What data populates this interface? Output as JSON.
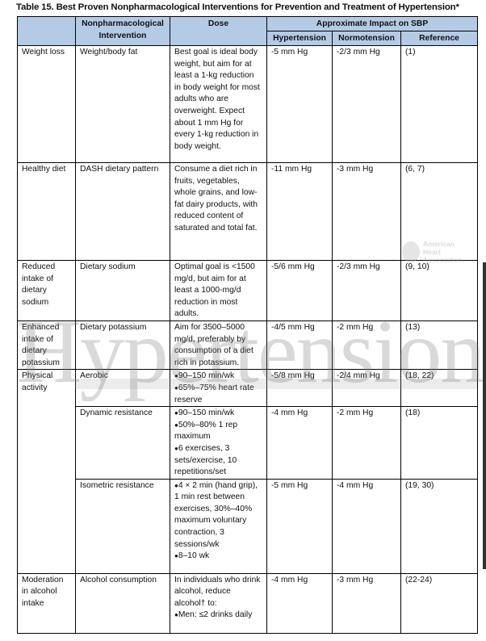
{
  "title": "Table 15. Best Proven Nonpharmacological Interventions for Prevention and Treatment of Hypertension*",
  "headers": {
    "intervention": "Nonpharmacological Intervention",
    "dose": "Dose",
    "impact": "Approximate Impact on SBP",
    "hypertension": "Hypertension",
    "normotension": "Normotension",
    "reference": "Reference"
  },
  "groups": [
    {
      "category": "Weight loss",
      "rows": [
        {
          "intervention": "Weight/body fat",
          "dose": "Best goal is ideal body weight, but aim for at least a 1-kg reduction in body weight for most adults who are overweight. Expect about 1 mm Hg for every 1-kg reduction in body weight.",
          "hypertension": "-5 mm Hg",
          "normotension": "-2/3 mm Hg",
          "reference": "(1)"
        }
      ]
    },
    {
      "category": "Healthy diet",
      "rows": [
        {
          "intervention": "DASH dietary pattern",
          "dose": "Consume a diet rich in fruits, vegetables, whole grains, and low-fat dairy products, with reduced content of saturated and total fat.",
          "hypertension": "-11 mm Hg",
          "normotension": "-3 mm Hg",
          "reference": "(6, 7)"
        }
      ]
    },
    {
      "category": "Reduced intake of dietary sodium",
      "rows": [
        {
          "intervention": "Dietary sodium",
          "dose": "Optimal goal is <1500 mg/d, but aim for at least a 1000-mg/d reduction in most adults.",
          "hypertension": "-5/6 mm Hg",
          "normotension": "-2/3 mm Hg",
          "reference": "(9, 10)"
        }
      ]
    },
    {
      "category": "Enhanced intake of dietary potassium",
      "rows": [
        {
          "intervention": "Dietary potassium",
          "dose": "Aim for 3500–5000 mg/d, preferably by consumption of a diet rich in potassium.",
          "hypertension": "-4/5 mm Hg",
          "normotension": "-2 mm Hg",
          "reference": "(13)"
        }
      ]
    },
    {
      "category": "Physical activity",
      "rows": [
        {
          "intervention": "Aerobic",
          "dose_bullets": [
            "90–150 min/wk",
            "65%–75% heart rate reserve"
          ],
          "hypertension": "-5/8 mm Hg",
          "normotension": "-2/4 mm Hg",
          "reference": "(18, 22)"
        },
        {
          "intervention": "Dynamic resistance",
          "dose_bullets": [
            "90–150 min/wk",
            "50%–80% 1 rep maximum",
            "6 exercises, 3 sets/exercise, 10 repetitions/set"
          ],
          "hypertension": "-4 mm Hg",
          "normotension": "-2 mm Hg",
          "reference": "(18)"
        },
        {
          "intervention": "Isometric resistance",
          "dose_bullets": [
            "4 × 2 min (hand grip), 1 min rest between exercises, 30%–40% maximum voluntary contraction, 3 sessions/wk",
            "8–10 wk"
          ],
          "hypertension": "-5 mm Hg",
          "normotension": "-4 mm Hg",
          "reference": "(19, 30)"
        }
      ]
    },
    {
      "category": "Moderation in alcohol intake",
      "rows": [
        {
          "intervention": "Alcohol consumption",
          "dose": "In individuals who drink alcohol, reduce alcohol† to:",
          "dose_bullets": [
            "Men: ≤2 drinks daily"
          ],
          "hypertension": "-4 mm Hg",
          "normotension": "-3 mm Hg",
          "reference": "(22-24)"
        }
      ]
    }
  ],
  "watermark": "Hypertension",
  "logo": {
    "text": "American Heart Association."
  },
  "colors": {
    "header_bg": "#b4cbe6",
    "border": "#000000"
  }
}
